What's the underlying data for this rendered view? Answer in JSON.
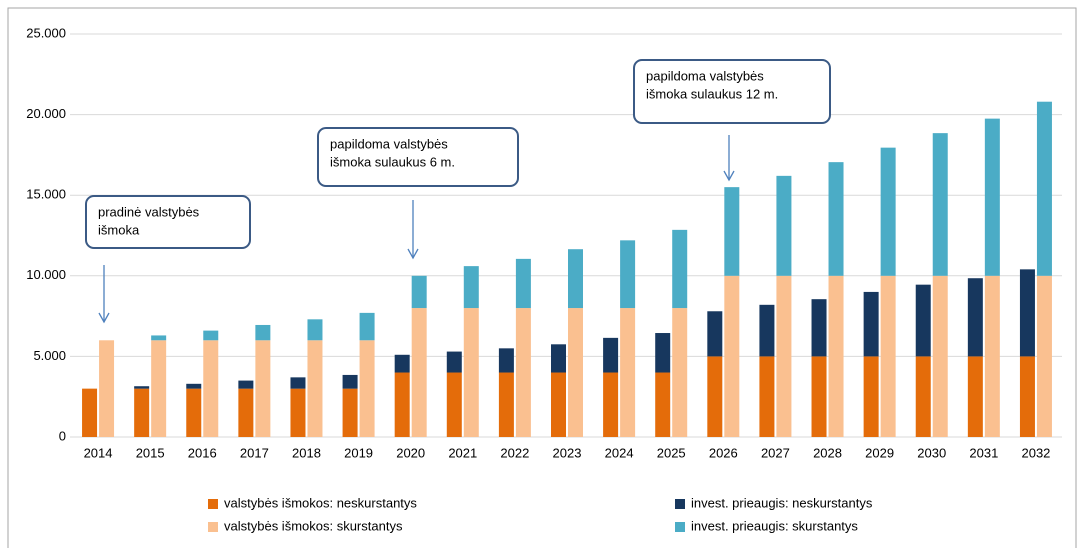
{
  "chart_data": {
    "type": "bar",
    "categories": [
      "2014",
      "2015",
      "2016",
      "2017",
      "2018",
      "2019",
      "2020",
      "2021",
      "2022",
      "2023",
      "2024",
      "2025",
      "2026",
      "2027",
      "2028",
      "2029",
      "2030",
      "2031",
      "2032"
    ],
    "series": [
      {
        "name": "valstybės išmokos: neskurstantys",
        "color": "#e46c0a",
        "values": [
          3000,
          3000,
          3000,
          3000,
          3000,
          3000,
          4000,
          4000,
          4000,
          4000,
          4000,
          4000,
          5000,
          5000,
          5000,
          5000,
          5000,
          5000,
          5000
        ]
      },
      {
        "name": "invest. prieaugis: neskurstantys",
        "color": "#17375e",
        "values": [
          0,
          150,
          300,
          500,
          700,
          850,
          1100,
          1300,
          1500,
          1750,
          2150,
          2450,
          2800,
          3200,
          3550,
          4000,
          4450,
          4850,
          5400
        ]
      },
      {
        "name": "valstybės išmokos: skurstantys",
        "color": "#fac090",
        "values": [
          6000,
          6000,
          6000,
          6000,
          6000,
          6000,
          8000,
          8000,
          8000,
          8000,
          8000,
          8000,
          10000,
          10000,
          10000,
          10000,
          10000,
          10000,
          10000
        ]
      },
      {
        "name": "invest. prieaugis: skurstantys",
        "color": "#4bacc6",
        "values": [
          0,
          300,
          600,
          950,
          1300,
          1700,
          2000,
          2600,
          3050,
          3650,
          4200,
          4850,
          5500,
          6200,
          7050,
          7950,
          8850,
          9750,
          10800
        ]
      }
    ],
    "ylim": [
      0,
      25000
    ],
    "yticks": [
      0,
      {
        "value": 5000,
        "label": "5.000"
      },
      {
        "value": 10000,
        "label": "10.000"
      },
      {
        "value": 15000,
        "label": "15.000"
      },
      {
        "value": 20000,
        "label": "20.000"
      },
      {
        "value": 25000,
        "label": "25.000"
      }
    ],
    "grid": true,
    "annotations": [
      {
        "lines": [
          "pradinė valstybės",
          "išmoka"
        ]
      },
      {
        "lines": [
          "papildoma valstybės",
          "išmoka sulaukus 6 m."
        ]
      },
      {
        "lines": [
          "papildoma valstybės",
          "išmoka sulaukus 12 m."
        ]
      }
    ]
  }
}
